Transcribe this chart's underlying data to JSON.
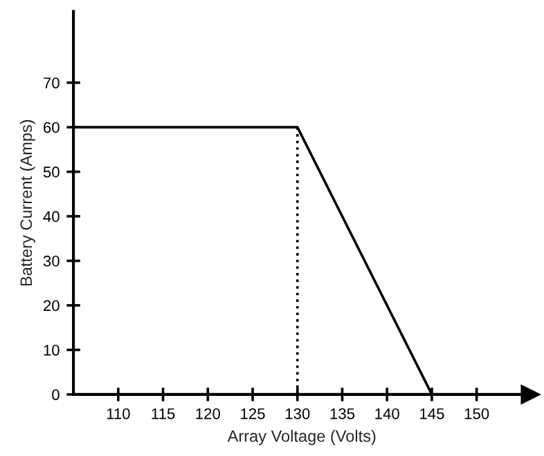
{
  "chart_data": {
    "type": "line",
    "xlabel": "Array Voltage (Volts)",
    "ylabel": "Battery Current (Amps)",
    "series": [
      {
        "color": "#000000",
        "x": [
          105,
          130,
          145
        ],
        "values": [
          60,
          60,
          0
        ],
        "line_style": "solid"
      },
      {
        "color": "#000000",
        "x": [
          130,
          130
        ],
        "values": [
          0,
          60
        ],
        "line_style": "dotted"
      }
    ],
    "xlim": [
      105,
      156
    ],
    "xticks": [
      110,
      115,
      120,
      125,
      130,
      135,
      140,
      145,
      150
    ],
    "ylim": [
      0,
      86
    ],
    "yticks": [
      0,
      10,
      20,
      30,
      40,
      50,
      60,
      70
    ],
    "grid": false,
    "legend": false,
    "marker": "none"
  }
}
